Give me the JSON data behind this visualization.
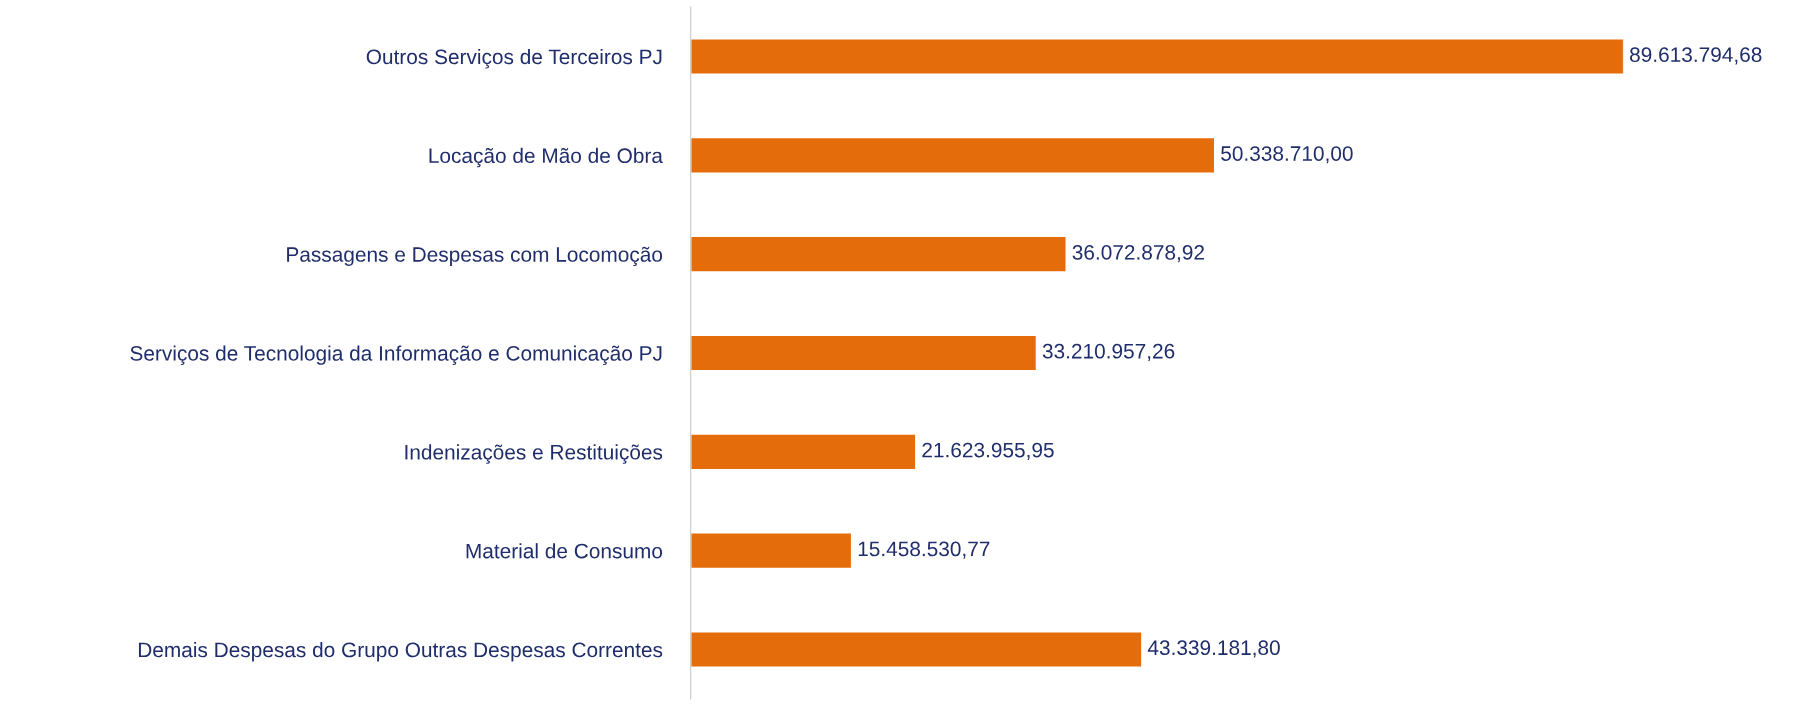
{
  "chart_data": {
    "type": "bar",
    "orientation": "horizontal",
    "categories": [
      "Outros Serviços de Terceiros PJ",
      "Locação de Mão de Obra",
      "Passagens e Despesas com Locomoção",
      "Serviços de Tecnologia da Informação e Comunicação PJ",
      "Indenizações e Restituições",
      "Material de Consumo",
      "Demais Despesas do Grupo Outras Despesas Correntes"
    ],
    "values": [
      89613794.68,
      50338710.0,
      36072878.92,
      33210957.26,
      21623955.95,
      15458530.77,
      43339181.8
    ],
    "value_labels": [
      "89.613.794,68",
      "50.338.710,00",
      "36.072.878,92",
      "33.210.957,26",
      "21.623.955,95",
      "15.458.530,77",
      "43.339.181,80"
    ],
    "color": "#e46c0a",
    "grid": false,
    "legend": false,
    "tick_labels": "y"
  }
}
